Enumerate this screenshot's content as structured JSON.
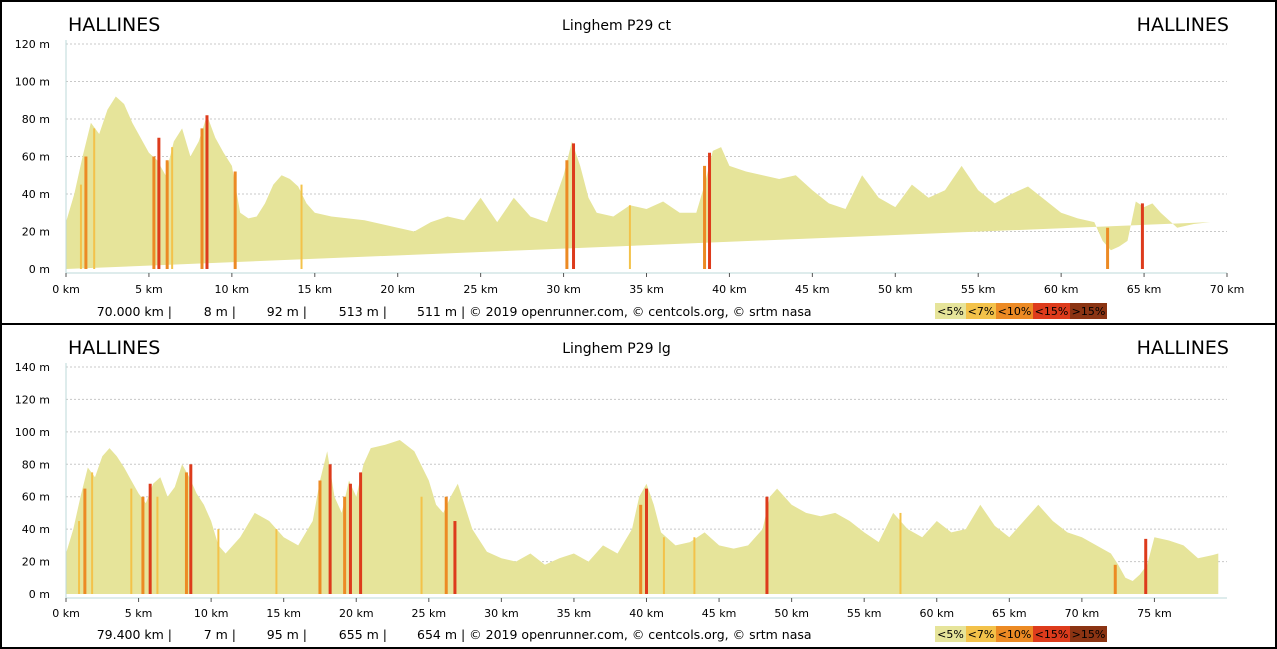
{
  "chart_data": [
    {
      "type": "area",
      "title": "Linghem P29 ct",
      "start_label": "HALLINES",
      "end_label": "HALLINES",
      "x_unit": "km",
      "y_unit": "m",
      "xlim": [
        0,
        70
      ],
      "ylim": [
        0,
        120
      ],
      "x_ticks": [
        "0 km",
        "5 km",
        "10 km",
        "15 km",
        "20 km",
        "25 km",
        "30 km",
        "35 km",
        "40 km",
        "45 km",
        "50 km",
        "55 km",
        "60 km",
        "65 km",
        "70 km"
      ],
      "y_ticks": [
        "0 m",
        "20 m",
        "40 m",
        "60 m",
        "80 m",
        "100 m",
        "120 m"
      ],
      "stats": {
        "distance": "70.000 km |",
        "min_alt": "8 m |",
        "max_alt": "92 m |",
        "ascent": "513 m |",
        "descent": "511 m | © 2019 openrunner.com, © centcols.org, © srtm nasa"
      },
      "profile_km": [
        0,
        0.5,
        1,
        1.5,
        2,
        2.5,
        3,
        3.5,
        4,
        4.5,
        5,
        5.5,
        6,
        6.5,
        7,
        7.5,
        8,
        8.5,
        9,
        9.5,
        10,
        10.5,
        11,
        11.5,
        12,
        12.5,
        13,
        13.5,
        14,
        14.5,
        15,
        16,
        17,
        18,
        19,
        20,
        21,
        22,
        23,
        24,
        25,
        26,
        27,
        28,
        29,
        30,
        30.5,
        31,
        31.5,
        32,
        33,
        34,
        35,
        36,
        37,
        38,
        38.5,
        39,
        39.5,
        40,
        41,
        42,
        43,
        44,
        45,
        46,
        47,
        48,
        49,
        50,
        51,
        52,
        53,
        54,
        55,
        56,
        57,
        58,
        59,
        60,
        61,
        62,
        62.5,
        63,
        63.5,
        64,
        64.5,
        65,
        65.5,
        66,
        67,
        68,
        69,
        70
      ],
      "profile_m": [
        25,
        40,
        60,
        78,
        72,
        85,
        92,
        88,
        78,
        70,
        62,
        58,
        50,
        68,
        75,
        60,
        68,
        82,
        70,
        62,
        55,
        30,
        27,
        28,
        35,
        45,
        50,
        48,
        44,
        35,
        30,
        28,
        27,
        26,
        24,
        22,
        20,
        25,
        28,
        26,
        38,
        25,
        38,
        28,
        25,
        50,
        68,
        55,
        38,
        30,
        28,
        34,
        32,
        36,
        30,
        30,
        45,
        63,
        65,
        55,
        52,
        50,
        48,
        50,
        42,
        35,
        32,
        50,
        38,
        33,
        45,
        38,
        42,
        55,
        42,
        35,
        40,
        44,
        37,
        30,
        27,
        25,
        15,
        10,
        12,
        15,
        36,
        33,
        35,
        30,
        22,
        24,
        25
      ],
      "steep": [
        {
          "km": 0.9,
          "m": 45,
          "grade": "<7%"
        },
        {
          "km": 1.2,
          "m": 60,
          "grade": "<10%"
        },
        {
          "km": 1.7,
          "m": 75,
          "grade": "<7%"
        },
        {
          "km": 5.3,
          "m": 60,
          "grade": "<10%"
        },
        {
          "km": 5.6,
          "m": 70,
          "grade": "<15%"
        },
        {
          "km": 6.1,
          "m": 58,
          "grade": "<10%"
        },
        {
          "km": 6.4,
          "m": 65,
          "grade": "<7%"
        },
        {
          "km": 8.2,
          "m": 75,
          "grade": "<10%"
        },
        {
          "km": 8.5,
          "m": 82,
          "grade": "<15%"
        },
        {
          "km": 10.2,
          "m": 52,
          "grade": "<10%"
        },
        {
          "km": 14.2,
          "m": 45,
          "grade": "<7%"
        },
        {
          "km": 30.2,
          "m": 58,
          "grade": "<10%"
        },
        {
          "km": 30.6,
          "m": 67,
          "grade": "<15%"
        },
        {
          "km": 34,
          "m": 34,
          "grade": "<7%"
        },
        {
          "km": 38.5,
          "m": 55,
          "grade": "<10%"
        },
        {
          "km": 38.8,
          "m": 62,
          "grade": "<15%"
        },
        {
          "km": 62.8,
          "m": 22,
          "grade": "<10%"
        },
        {
          "km": 64.9,
          "m": 35,
          "grade": "<15%"
        }
      ]
    },
    {
      "type": "area",
      "title": "Linghem P29 lg",
      "start_label": "HALLINES",
      "end_label": "HALLINES",
      "x_unit": "km",
      "y_unit": "m",
      "xlim": [
        0,
        80
      ],
      "ylim": [
        0,
        140
      ],
      "x_ticks": [
        "0 km",
        "5 km",
        "10 km",
        "15 km",
        "20 km",
        "25 km",
        "30 km",
        "35 km",
        "40 km",
        "45 km",
        "50 km",
        "55 km",
        "60 km",
        "65 km",
        "70 km",
        "75 km"
      ],
      "y_ticks": [
        "0 m",
        "20 m",
        "40 m",
        "60 m",
        "80 m",
        "100 m",
        "120 m",
        "140 m"
      ],
      "stats": {
        "distance": "79.400 km |",
        "min_alt": "7 m |",
        "max_alt": "95 m |",
        "ascent": "655 m |",
        "descent": "654 m | © 2019 openrunner.com, © centcols.org, © srtm nasa"
      },
      "profile_km": [
        0,
        0.5,
        1,
        1.5,
        2,
        2.5,
        3,
        3.5,
        4,
        4.5,
        5,
        5.5,
        6,
        6.5,
        7,
        7.5,
        8,
        8.5,
        9,
        9.5,
        10,
        10.5,
        11,
        12,
        13,
        14,
        15,
        16,
        17,
        17.5,
        18,
        18.5,
        19,
        19.5,
        20,
        20.5,
        21,
        22,
        23,
        24,
        25,
        25.5,
        26,
        26.5,
        27,
        28,
        29,
        30,
        31,
        32,
        33,
        34,
        35,
        36,
        37,
        38,
        39,
        39.5,
        40,
        40.5,
        41,
        42,
        43,
        44,
        45,
        46,
        47,
        48,
        48.5,
        49,
        50,
        51,
        52,
        53,
        54,
        55,
        56,
        57,
        58,
        59,
        60,
        61,
        62,
        63,
        64,
        65,
        66,
        67,
        68,
        69,
        70,
        71,
        72,
        72.5,
        73,
        73.5,
        74,
        74.5,
        75,
        76,
        77,
        78,
        79,
        79.4
      ],
      "profile_m": [
        25,
        40,
        60,
        78,
        72,
        85,
        90,
        85,
        78,
        70,
        62,
        56,
        68,
        72,
        60,
        66,
        80,
        72,
        62,
        55,
        45,
        30,
        25,
        35,
        50,
        45,
        35,
        30,
        45,
        70,
        88,
        60,
        50,
        70,
        60,
        80,
        90,
        92,
        95,
        88,
        70,
        55,
        50,
        60,
        68,
        40,
        26,
        22,
        20,
        25,
        18,
        22,
        25,
        20,
        30,
        25,
        40,
        60,
        68,
        55,
        38,
        30,
        32,
        38,
        30,
        28,
        30,
        40,
        60,
        65,
        55,
        50,
        48,
        50,
        45,
        38,
        32,
        50,
        40,
        35,
        45,
        38,
        40,
        55,
        42,
        35,
        45,
        55,
        45,
        38,
        35,
        30,
        25,
        18,
        10,
        8,
        12,
        18,
        35,
        33,
        30,
        22,
        24,
        25,
        24
      ],
      "steep": [
        {
          "km": 0.9,
          "m": 45,
          "grade": "<7%"
        },
        {
          "km": 1.3,
          "m": 65,
          "grade": "<10%"
        },
        {
          "km": 1.8,
          "m": 75,
          "grade": "<7%"
        },
        {
          "km": 4.5,
          "m": 65,
          "grade": "<7%"
        },
        {
          "km": 5.3,
          "m": 60,
          "grade": "<10%"
        },
        {
          "km": 5.8,
          "m": 68,
          "grade": "<15%"
        },
        {
          "km": 6.3,
          "m": 60,
          "grade": "<7%"
        },
        {
          "km": 8.3,
          "m": 75,
          "grade": "<10%"
        },
        {
          "km": 8.6,
          "m": 80,
          "grade": "<15%"
        },
        {
          "km": 10.5,
          "m": 40,
          "grade": "<7%"
        },
        {
          "km": 14.5,
          "m": 40,
          "grade": "<7%"
        },
        {
          "km": 17.5,
          "m": 70,
          "grade": "<10%"
        },
        {
          "km": 18.2,
          "m": 80,
          "grade": "<15%"
        },
        {
          "km": 19.2,
          "m": 60,
          "grade": "<10%"
        },
        {
          "km": 19.6,
          "m": 68,
          "grade": "<15%"
        },
        {
          "km": 20.3,
          "m": 75,
          "grade": "<15%"
        },
        {
          "km": 24.5,
          "m": 60,
          "grade": "<7%"
        },
        {
          "km": 26.2,
          "m": 60,
          "grade": "<10%"
        },
        {
          "km": 26.8,
          "m": 45,
          "grade": "<15%"
        },
        {
          "km": 39.6,
          "m": 55,
          "grade": "<10%"
        },
        {
          "km": 40,
          "m": 65,
          "grade": "<15%"
        },
        {
          "km": 41.2,
          "m": 35,
          "grade": "<7%"
        },
        {
          "km": 43.3,
          "m": 35,
          "grade": "<7%"
        },
        {
          "km": 48.3,
          "m": 60,
          "grade": "<15%"
        },
        {
          "km": 57.5,
          "m": 50,
          "grade": "<7%"
        },
        {
          "km": 72.3,
          "m": 18,
          "grade": "<10%"
        },
        {
          "km": 74.4,
          "m": 34,
          "grade": "<15%"
        }
      ]
    }
  ],
  "legend": [
    {
      "label": "<5%",
      "color": "#e6e49a"
    },
    {
      "label": "<7%",
      "color": "#f3c24a"
    },
    {
      "label": "<10%",
      "color": "#ec8a24"
    },
    {
      "label": "<15%",
      "color": "#dd3b1c"
    },
    {
      "label": ">15%",
      "color": "#8b3413"
    }
  ],
  "colors": {
    "fill": "#e6e49a",
    "grid": "#c8c8c8",
    "axis": "#bcd8d8"
  }
}
